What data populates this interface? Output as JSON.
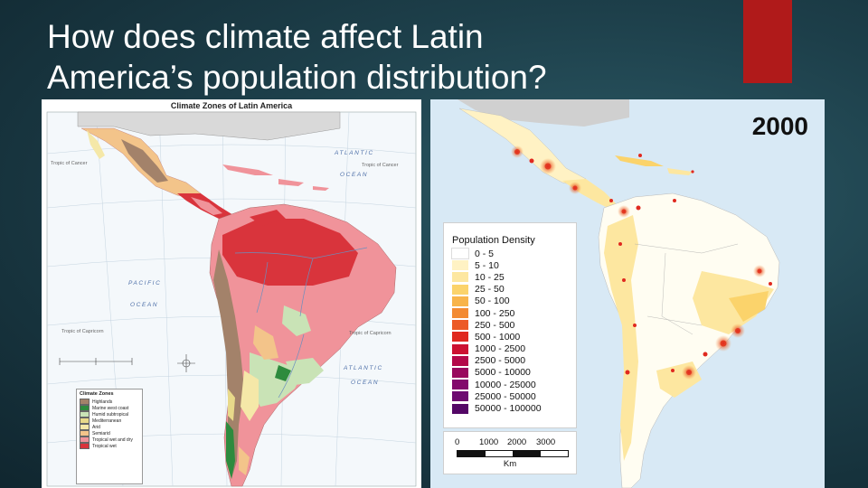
{
  "slide": {
    "title_line1": "How does climate affect Latin",
    "title_line2": "America’s population distribution?",
    "accent_color": "#b01a1a"
  },
  "climate_map": {
    "title": "Climate Zones of Latin America",
    "oceans": [
      "ATLANTIC",
      "OCEAN",
      "PACIFIC",
      "OCEAN",
      "ATLANTIC",
      "OCEAN"
    ],
    "lat_labels": [
      "Tropic of Cancer",
      "Tropic of Cancer",
      "Tropic of Capricorn",
      "Tropic of Capricorn"
    ],
    "legend_title": "Climate Zones",
    "legend": [
      {
        "label": "Highlands",
        "color": "#a3826a"
      },
      {
        "label": "Marine west coast",
        "color": "#2e8b3e"
      },
      {
        "label": "Humid subtropical",
        "color": "#c9e3b6"
      },
      {
        "label": "Mediterranean",
        "color": "#e8d98a"
      },
      {
        "label": "Arid",
        "color": "#f5e8a8"
      },
      {
        "label": "Semiarid",
        "color": "#f3c48a"
      },
      {
        "label": "Tropical wet and dry",
        "color": "#f0939a"
      },
      {
        "label": "Tropical wet",
        "color": "#d9343c"
      }
    ]
  },
  "population_map": {
    "year": "2000",
    "legend_title": "Population Density",
    "legend": [
      {
        "label": "0 - 5",
        "color": "#ffffff"
      },
      {
        "label": "5 - 10",
        "color": "#fff2c4"
      },
      {
        "label": "10 - 25",
        "color": "#fde7a0"
      },
      {
        "label": "25 - 50",
        "color": "#fbd36b"
      },
      {
        "label": "50 - 100",
        "color": "#f8b44a"
      },
      {
        "label": "100 - 250",
        "color": "#f38a32"
      },
      {
        "label": "250 - 500",
        "color": "#ec5a26"
      },
      {
        "label": "500 - 1000",
        "color": "#e0291f"
      },
      {
        "label": "1000 - 2500",
        "color": "#cc1232"
      },
      {
        "label": "2500 - 5000",
        "color": "#b3094a"
      },
      {
        "label": "5000 - 10000",
        "color": "#99085e"
      },
      {
        "label": "10000 - 25000",
        "color": "#83096c"
      },
      {
        "label": "25000 - 50000",
        "color": "#6d0a70"
      },
      {
        "label": "50000 - 100000",
        "color": "#540766"
      }
    ],
    "scale_ticks": [
      "0",
      "1000",
      "2000",
      "3000"
    ],
    "scale_unit": "Km"
  }
}
